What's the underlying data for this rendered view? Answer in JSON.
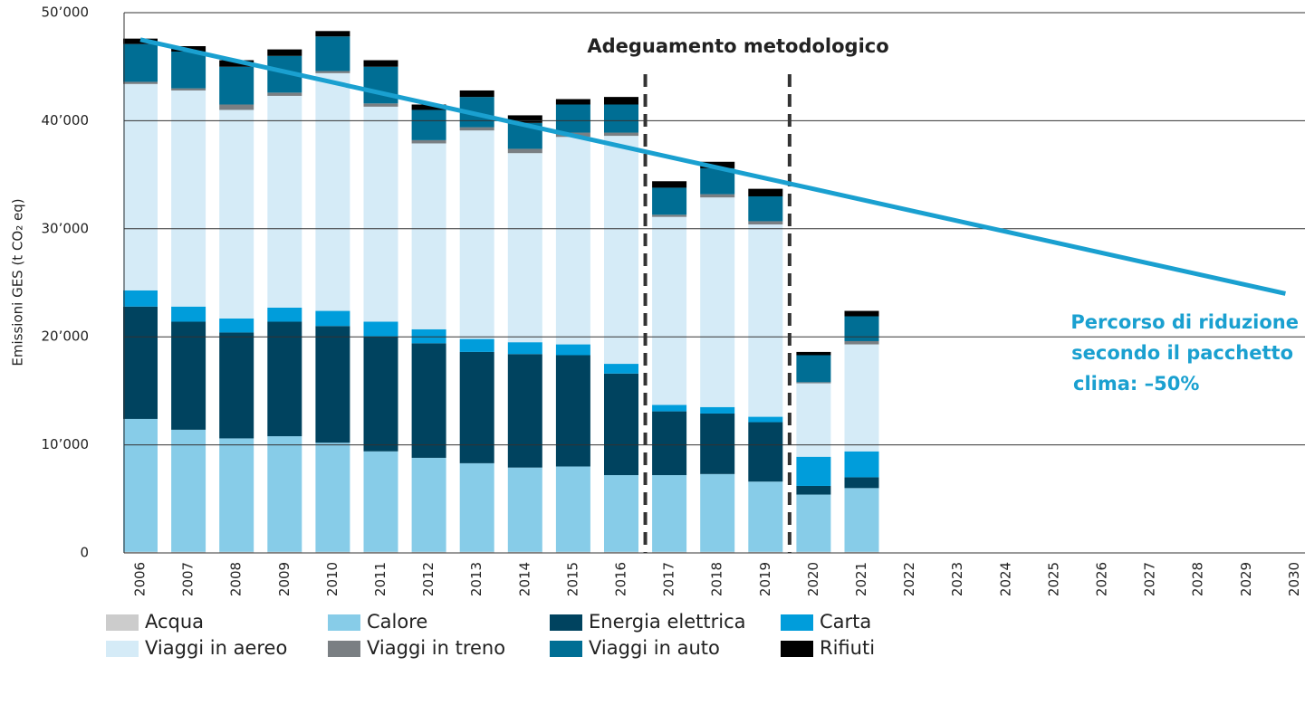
{
  "chart_data": {
    "type": "bar",
    "stacked": true,
    "y_label": "Emissioni GES (t CO₂ eq)",
    "categories": [
      "2006",
      "2007",
      "2008",
      "2009",
      "2010",
      "2011",
      "2012",
      "2013",
      "2014",
      "2015",
      "2016",
      "2017",
      "2018",
      "2019",
      "2020",
      "2021",
      "2022",
      "2023",
      "2024",
      "2025",
      "2026",
      "2027",
      "2028",
      "2029",
      "2030"
    ],
    "series": [
      {
        "name": "Acqua",
        "color": "#cccccc",
        "values": [
          100,
          100,
          100,
          100,
          100,
          100,
          100,
          100,
          100,
          100,
          100,
          100,
          100,
          100,
          100,
          100,
          null,
          null,
          null,
          null,
          null,
          null,
          null,
          null,
          null
        ]
      },
      {
        "name": "Calore",
        "color": "#87cce8",
        "values": [
          12300,
          11300,
          10500,
          10700,
          10100,
          9300,
          8700,
          8200,
          7800,
          7900,
          7100,
          7100,
          7200,
          6500,
          5300,
          5900,
          null,
          null,
          null,
          null,
          null,
          null,
          null,
          null,
          null
        ]
      },
      {
        "name": "Energia elettrica",
        "color": "#00435f",
        "values": [
          10400,
          10000,
          9800,
          10600,
          10800,
          10600,
          10600,
          10300,
          10500,
          10300,
          9400,
          5900,
          5600,
          5500,
          800,
          1000,
          null,
          null,
          null,
          null,
          null,
          null,
          null,
          null,
          null
        ]
      },
      {
        "name": "Carta",
        "color": "#009ddb",
        "values": [
          1500,
          1400,
          1300,
          1300,
          1400,
          1400,
          1300,
          1200,
          1100,
          1000,
          900,
          600,
          600,
          500,
          2700,
          2400,
          null,
          null,
          null,
          null,
          null,
          null,
          null,
          null,
          null
        ]
      },
      {
        "name": "Viaggi in aereo",
        "color": "#d5ebf7",
        "values": [
          19100,
          20000,
          19300,
          19600,
          22000,
          19900,
          17200,
          19300,
          17500,
          19200,
          21100,
          17400,
          19400,
          17800,
          6800,
          9900,
          null,
          null,
          null,
          null,
          null,
          null,
          null,
          null,
          null
        ]
      },
      {
        "name": "Viaggi in treno",
        "color": "#7a7f83",
        "values": [
          200,
          200,
          500,
          300,
          200,
          300,
          300,
          300,
          400,
          400,
          300,
          200,
          300,
          300,
          100,
          300,
          null,
          null,
          null,
          null,
          null,
          null,
          null,
          null,
          null
        ]
      },
      {
        "name": "Viaggi in auto",
        "color": "#006e94",
        "values": [
          3500,
          3400,
          3500,
          3400,
          3200,
          3400,
          2800,
          2800,
          2400,
          2600,
          2600,
          2500,
          2400,
          2300,
          2500,
          2300,
          null,
          null,
          null,
          null,
          null,
          null,
          null,
          null,
          null
        ]
      },
      {
        "name": "Rifiuti",
        "color": "#000000",
        "values": [
          500,
          500,
          600,
          600,
          500,
          600,
          500,
          600,
          700,
          500,
          700,
          600,
          600,
          700,
          300,
          500,
          null,
          null,
          null,
          null,
          null,
          null,
          null,
          null,
          null
        ]
      }
    ],
    "reduction_path": {
      "color": "#1aa0d0",
      "x": [
        "2006",
        "2030"
      ],
      "values": [
        47500,
        24000
      ]
    },
    "annotations": [
      "Adeguamento metodologico",
      "Percorso di riduzione",
      "secondo il pacchetto",
      "clima: –50%"
    ],
    "ylim": [
      0,
      50000
    ],
    "yticks": [
      {
        "value": 0,
        "label": "0"
      },
      {
        "value": 10000,
        "label": "10’000"
      },
      {
        "value": 20000,
        "label": "20’000"
      },
      {
        "value": 30000,
        "label": "30’000"
      },
      {
        "value": 40000,
        "label": "40’000"
      },
      {
        "value": 50000,
        "label": "50’000"
      }
    ],
    "grid": true,
    "legend": "bottom"
  }
}
